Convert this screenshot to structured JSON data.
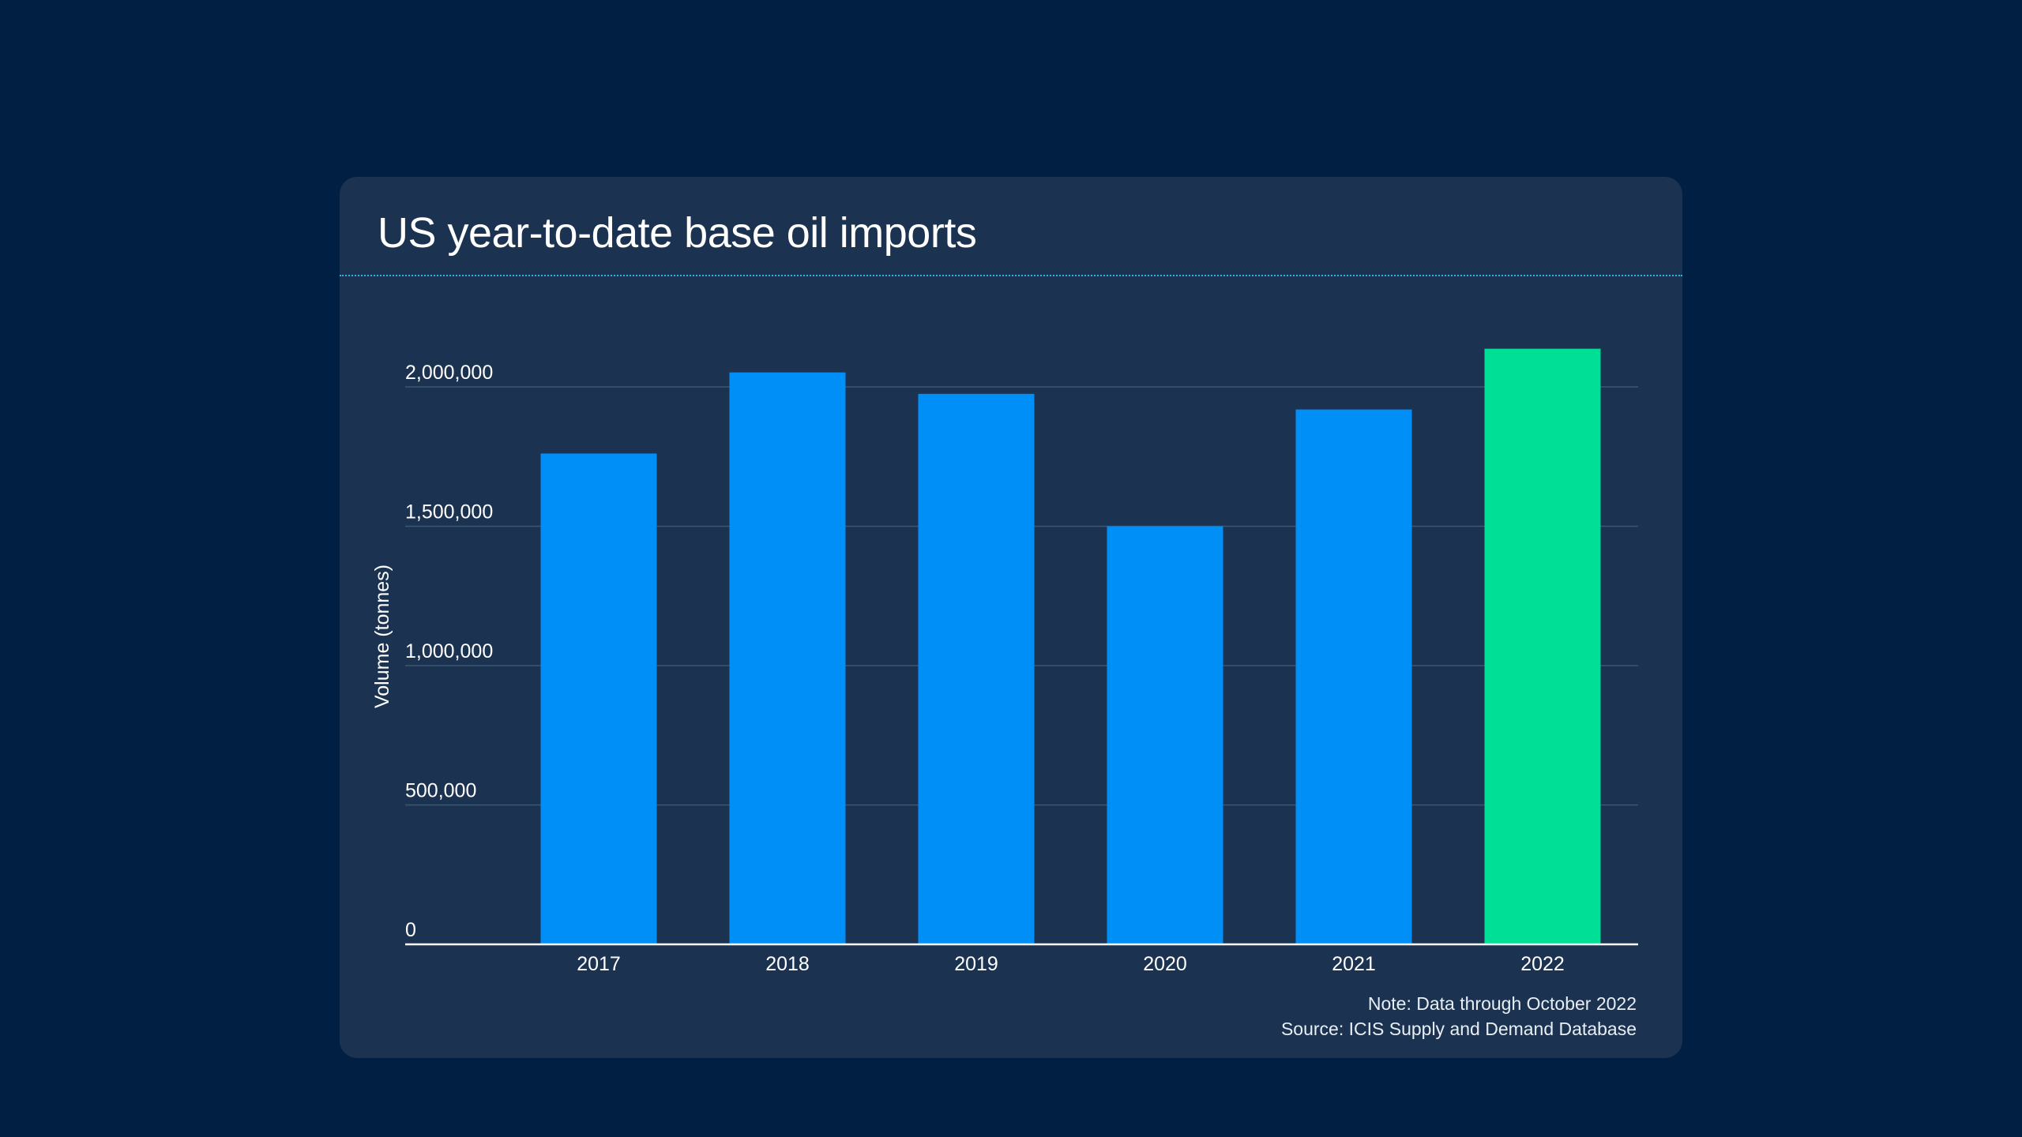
{
  "chart_data": {
    "type": "bar",
    "title": "US year-to-date base oil imports",
    "xlabel": "",
    "ylabel": "Volume (tonnes)",
    "categories": [
      "2017",
      "2018",
      "2019",
      "2020",
      "2021",
      "2022"
    ],
    "values": [
      1761000,
      2052000,
      1975000,
      1500000,
      1919000,
      2137000
    ],
    "highlight_index": 5,
    "ylim": [
      0,
      2200000
    ],
    "yticks": [
      0,
      500000,
      1000000,
      1500000,
      2000000
    ],
    "ytick_labels": [
      "0",
      "500,000",
      "1,000,000",
      "1,500,000",
      "2,000,000"
    ],
    "grid": true,
    "legend": "none",
    "colors": {
      "bar": "#008ff7",
      "highlight": "#00df96",
      "grid": "#3c5672",
      "axis": "#ffffff"
    }
  },
  "footer": {
    "note": "Note: Data through October 2022",
    "source": "Source: ICIS Supply and Demand Database"
  }
}
